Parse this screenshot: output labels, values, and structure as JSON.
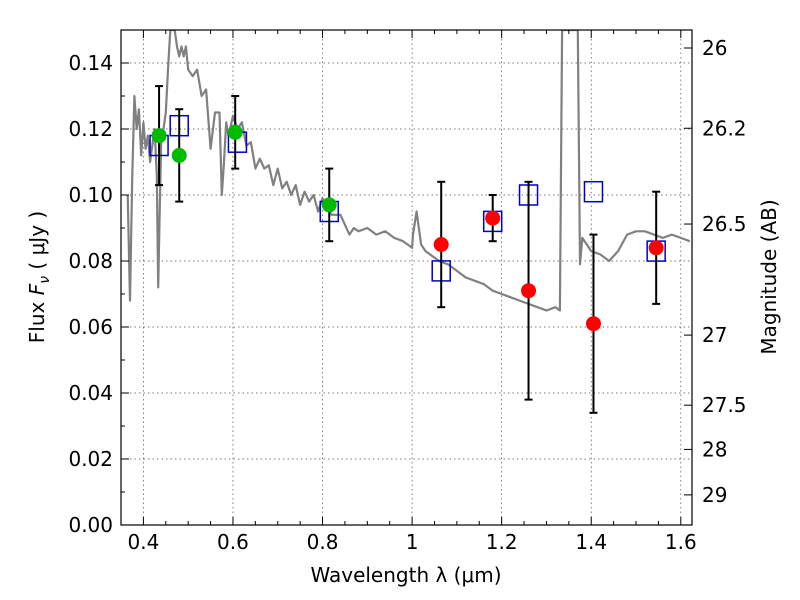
{
  "chart_data": {
    "type": "scatter",
    "xlabel": "Wavelength  λ (μm)",
    "ylabel": "Flux  F_ν  ( μJy )",
    "ylabel_parts": {
      "pre": "Flux  ",
      "sym": "F",
      "sub": "ν",
      "post": "  ( μJy )"
    },
    "y2label": "Magnitude (AB)",
    "xlim": [
      0.35,
      1.625
    ],
    "ylim": [
      0.0,
      0.15
    ],
    "grid": true,
    "x_ticks": [
      {
        "v": 0.4,
        "label": "0.4"
      },
      {
        "v": 0.6,
        "label": "0.6"
      },
      {
        "v": 0.8,
        "label": "0.8"
      },
      {
        "v": 1.0,
        "label": "1"
      },
      {
        "v": 1.2,
        "label": "1.2"
      },
      {
        "v": 1.4,
        "label": "1.4"
      },
      {
        "v": 1.6,
        "label": "1.6"
      }
    ],
    "y_ticks": [
      {
        "v": 0.0,
        "label": "0.00"
      },
      {
        "v": 0.02,
        "label": "0.02"
      },
      {
        "v": 0.04,
        "label": "0.04"
      },
      {
        "v": 0.06,
        "label": "0.06"
      },
      {
        "v": 0.08,
        "label": "0.08"
      },
      {
        "v": 0.1,
        "label": "0.10"
      },
      {
        "v": 0.12,
        "label": "0.12"
      },
      {
        "v": 0.14,
        "label": "0.14"
      }
    ],
    "y2_ticks": [
      {
        "mag": 26,
        "label": "26"
      },
      {
        "mag": 26.2,
        "label": "26.2"
      },
      {
        "mag": 26.5,
        "label": "26.5"
      },
      {
        "mag": 27,
        "label": "27"
      },
      {
        "mag": 27.5,
        "label": "27.5"
      },
      {
        "mag": 28,
        "label": "28"
      },
      {
        "mag": 29,
        "label": "29"
      }
    ],
    "series": [
      {
        "name": "model_sed",
        "kind": "line",
        "color": "#808080",
        "x": [
          0.365,
          0.37,
          0.375,
          0.38,
          0.385,
          0.39,
          0.395,
          0.4,
          0.405,
          0.41,
          0.415,
          0.42,
          0.425,
          0.43,
          0.433,
          0.436,
          0.44,
          0.445,
          0.45,
          0.455,
          0.46,
          0.465,
          0.47,
          0.475,
          0.48,
          0.485,
          0.49,
          0.495,
          0.5,
          0.51,
          0.52,
          0.53,
          0.54,
          0.55,
          0.56,
          0.57,
          0.575,
          0.58,
          0.585,
          0.59,
          0.6,
          0.61,
          0.62,
          0.63,
          0.64,
          0.65,
          0.66,
          0.67,
          0.68,
          0.69,
          0.7,
          0.71,
          0.72,
          0.73,
          0.74,
          0.75,
          0.76,
          0.77,
          0.78,
          0.79,
          0.8,
          0.82,
          0.84,
          0.86,
          0.87,
          0.88,
          0.9,
          0.92,
          0.94,
          0.96,
          0.98,
          1.0,
          1.002,
          1.01,
          1.02,
          1.03,
          1.04,
          1.06,
          1.08,
          1.1,
          1.12,
          1.14,
          1.16,
          1.18,
          1.2,
          1.22,
          1.24,
          1.26,
          1.28,
          1.3,
          1.32,
          1.33,
          1.335,
          1.37,
          1.375,
          1.38,
          1.39,
          1.4,
          1.42,
          1.44,
          1.46,
          1.48,
          1.5,
          1.52,
          1.54,
          1.56,
          1.58,
          1.6,
          1.62
        ],
        "y": [
          0.1,
          0.068,
          0.105,
          0.13,
          0.12,
          0.126,
          0.112,
          0.122,
          0.114,
          0.118,
          0.11,
          0.115,
          0.12,
          0.106,
          0.072,
          0.092,
          0.118,
          0.12,
          0.125,
          0.138,
          0.15,
          0.15,
          0.15,
          0.145,
          0.142,
          0.145,
          0.142,
          0.145,
          0.138,
          0.136,
          0.138,
          0.13,
          0.132,
          0.114,
          0.125,
          0.125,
          0.1,
          0.11,
          0.122,
          0.118,
          0.124,
          0.12,
          0.122,
          0.115,
          0.116,
          0.108,
          0.111,
          0.108,
          0.109,
          0.103,
          0.108,
          0.102,
          0.104,
          0.1,
          0.103,
          0.097,
          0.101,
          0.098,
          0.1,
          0.095,
          0.099,
          0.094,
          0.094,
          0.088,
          0.09,
          0.089,
          0.09,
          0.088,
          0.089,
          0.087,
          0.086,
          0.084,
          0.088,
          0.095,
          0.085,
          0.083,
          0.082,
          0.08,
          0.079,
          0.077,
          0.075,
          0.074,
          0.073,
          0.071,
          0.07,
          0.069,
          0.068,
          0.067,
          0.066,
          0.065,
          0.066,
          0.065,
          0.15,
          0.15,
          0.079,
          0.087,
          0.085,
          0.083,
          0.082,
          0.08,
          0.083,
          0.088,
          0.089,
          0.089,
          0.088,
          0.087,
          0.088,
          0.087,
          0.086
        ]
      },
      {
        "name": "model_photometry",
        "kind": "open-square",
        "color": "#0000cc",
        "x": [
          0.435,
          0.48,
          0.61,
          0.815,
          1.065,
          1.18,
          1.26,
          1.405,
          1.545
        ],
        "y": [
          0.115,
          0.121,
          0.116,
          0.095,
          0.077,
          0.092,
          0.1,
          0.101,
          0.083
        ]
      },
      {
        "name": "optical_detections",
        "kind": "filled-circle",
        "color": "#00bb00",
        "x": [
          0.435,
          0.48,
          0.605,
          0.815
        ],
        "y": [
          0.118,
          0.112,
          0.119,
          0.097
        ],
        "err": [
          0.015,
          0.014,
          0.011,
          0.011
        ]
      },
      {
        "name": "nir_detections",
        "kind": "filled-circle",
        "color": "#ff0000",
        "x": [
          1.065,
          1.18,
          1.26,
          1.405,
          1.545
        ],
        "y": [
          0.085,
          0.093,
          0.071,
          0.061,
          0.084
        ],
        "err": [
          0.019,
          0.007,
          0.033,
          0.027,
          0.017
        ]
      }
    ]
  }
}
